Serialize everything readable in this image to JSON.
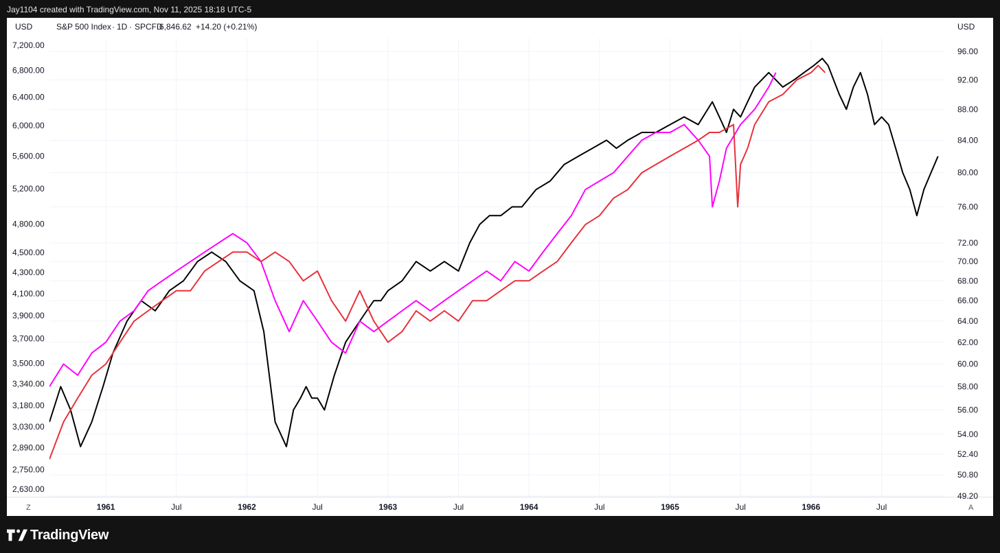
{
  "header": {
    "attribution": "Jay1104 created with TradingView.com, Nov 11, 2025 18:18 UTC-5"
  },
  "legend": {
    "left_currency": "USD",
    "symbol_name": "S&P 500 Index",
    "interval": "1D",
    "source": "SPCFD",
    "last_value": "6,846.62",
    "change": "+14.20 (+0.21%)",
    "right_currency": "USD"
  },
  "controls": {
    "zoom_label": "Z",
    "auto_label": "A"
  },
  "footer": {
    "brand": "TradingView"
  },
  "colors": {
    "black_series": "#000000",
    "magenta_series": "#ff00ff",
    "red_series": "#e8303a",
    "background": "#131313",
    "chart_background": "#ffffff",
    "grid": "#f0f3fa"
  },
  "chart_data": {
    "type": "line",
    "left_axis_scale": "log",
    "right_axis_scale": "log",
    "left_ticks": [
      "7,200.00",
      "6,800.00",
      "6,400.00",
      "6,000.00",
      "5,600.00",
      "5,200.00",
      "4,800.00",
      "4,500.00",
      "4,300.00",
      "4,100.00",
      "3,900.00",
      "3,700.00",
      "3,500.00",
      "3,340.00",
      "3,180.00",
      "3,030.00",
      "2,890.00",
      "2,750.00",
      "2,630.00"
    ],
    "left_tick_values": [
      7200,
      6800,
      6400,
      6000,
      5600,
      5200,
      4800,
      4500,
      4300,
      4100,
      3900,
      3700,
      3500,
      3340,
      3180,
      3030,
      2890,
      2750,
      2630
    ],
    "right_ticks": [
      "96.00",
      "92.00",
      "88.00",
      "84.00",
      "80.00",
      "76.00",
      "72.00",
      "70.00",
      "68.00",
      "66.00",
      "64.00",
      "62.00",
      "60.00",
      "58.00",
      "56.00",
      "54.00",
      "52.40",
      "50.80",
      "49.20"
    ],
    "right_tick_values": [
      96,
      92,
      88,
      84,
      80,
      76,
      72,
      70,
      68,
      66,
      64,
      62,
      60,
      58,
      56,
      54,
      52.4,
      50.8,
      49.2
    ],
    "x_ticks": [
      {
        "label": "1961",
        "x": 1961.0,
        "bold": true
      },
      {
        "label": "Jul",
        "x": 1961.5,
        "bold": false
      },
      {
        "label": "1962",
        "x": 1962.0,
        "bold": true
      },
      {
        "label": "Jul",
        "x": 1962.5,
        "bold": false
      },
      {
        "label": "1963",
        "x": 1963.0,
        "bold": true
      },
      {
        "label": "Jul",
        "x": 1963.5,
        "bold": false
      },
      {
        "label": "1964",
        "x": 1964.0,
        "bold": true
      },
      {
        "label": "Jul",
        "x": 1964.5,
        "bold": false
      },
      {
        "label": "1965",
        "x": 1965.0,
        "bold": true
      },
      {
        "label": "Jul",
        "x": 1965.5,
        "bold": false
      },
      {
        "label": "1966",
        "x": 1966.0,
        "bold": true
      },
      {
        "label": "Jul",
        "x": 1966.5,
        "bold": false
      }
    ],
    "x_range": [
      1960.6,
      1966.95
    ],
    "series": [
      {
        "color": "#000000",
        "axis": "right",
        "x": [
          1960.6,
          1960.68,
          1960.75,
          1960.82,
          1960.9,
          1960.98,
          1961.05,
          1961.15,
          1961.25,
          1961.35,
          1961.45,
          1961.55,
          1961.65,
          1961.75,
          1961.85,
          1961.95,
          1962.05,
          1962.12,
          1962.2,
          1962.28,
          1962.33,
          1962.38,
          1962.42,
          1962.46,
          1962.5,
          1962.55,
          1962.62,
          1962.7,
          1962.75,
          1962.8,
          1962.85,
          1962.9,
          1962.95,
          1963.0,
          1963.1,
          1963.2,
          1963.3,
          1963.4,
          1963.5,
          1963.58,
          1963.65,
          1963.72,
          1963.8,
          1963.88,
          1963.95,
          1964.05,
          1964.15,
          1964.25,
          1964.35,
          1964.45,
          1964.55,
          1964.62,
          1964.7,
          1964.8,
          1964.9,
          1965.0,
          1965.1,
          1965.2,
          1965.3,
          1965.35,
          1965.4,
          1965.45,
          1965.5,
          1965.55,
          1965.6,
          1965.7,
          1965.8,
          1965.88,
          1965.95,
          1966.02,
          1966.08,
          1966.12,
          1966.2,
          1966.25,
          1966.3,
          1966.35,
          1966.4,
          1966.45,
          1966.5,
          1966.55,
          1966.6,
          1966.65,
          1966.7,
          1966.75,
          1966.8,
          1966.85,
          1966.9
        ],
        "y": [
          55,
          58,
          56,
          53,
          55,
          58,
          61,
          64,
          66,
          65,
          67,
          68,
          70,
          71,
          70,
          68,
          67,
          63,
          55,
          53,
          56,
          57,
          58,
          57,
          57,
          56,
          59,
          62,
          63,
          64,
          65,
          66,
          66,
          67,
          68,
          70,
          69,
          70,
          69,
          72,
          74,
          75,
          75,
          76,
          76,
          78,
          79,
          81,
          82,
          83,
          84,
          83,
          84,
          85,
          85,
          86,
          87,
          86,
          89,
          87,
          85,
          88,
          87,
          89,
          91,
          93,
          91,
          92,
          93,
          94,
          95,
          94,
          90,
          88,
          91,
          93,
          90,
          86,
          87,
          86,
          83,
          80,
          78,
          75,
          78,
          80,
          82
        ]
      },
      {
        "color": "#ff00ff",
        "axis": "right",
        "x": [
          1960.6,
          1960.7,
          1960.8,
          1960.9,
          1961.0,
          1961.1,
          1961.2,
          1961.3,
          1961.4,
          1961.5,
          1961.6,
          1961.7,
          1961.8,
          1961.9,
          1962.0,
          1962.1,
          1962.2,
          1962.3,
          1962.4,
          1962.5,
          1962.6,
          1962.7,
          1962.8,
          1962.9,
          1963.0,
          1963.1,
          1963.2,
          1963.3,
          1963.4,
          1963.5,
          1963.6,
          1963.7,
          1963.8,
          1963.9,
          1964.0,
          1964.1,
          1964.2,
          1964.3,
          1964.4,
          1964.5,
          1964.6,
          1964.7,
          1964.8,
          1964.9,
          1965.0,
          1965.1,
          1965.2,
          1965.28,
          1965.3,
          1965.35,
          1965.4,
          1965.5,
          1965.6,
          1965.7,
          1965.75
        ],
        "y": [
          58,
          60,
          59,
          61,
          62,
          64,
          65,
          67,
          68,
          69,
          70,
          71,
          72,
          73,
          72,
          70,
          66,
          63,
          66,
          64,
          62,
          61,
          64,
          63,
          64,
          65,
          66,
          65,
          66,
          67,
          68,
          69,
          68,
          70,
          69,
          71,
          73,
          75,
          78,
          79,
          80,
          82,
          84,
          85,
          85,
          86,
          84,
          82,
          76,
          79,
          83,
          86,
          88,
          91,
          93
        ]
      },
      {
        "color": "#e8303a",
        "axis": "right",
        "x": [
          1960.6,
          1960.7,
          1960.8,
          1960.9,
          1961.0,
          1961.1,
          1961.2,
          1961.3,
          1961.4,
          1961.5,
          1961.6,
          1961.7,
          1961.8,
          1961.9,
          1962.0,
          1962.1,
          1962.2,
          1962.3,
          1962.4,
          1962.5,
          1962.6,
          1962.7,
          1962.8,
          1962.9,
          1963.0,
          1963.1,
          1963.2,
          1963.3,
          1963.4,
          1963.5,
          1963.6,
          1963.7,
          1963.8,
          1963.9,
          1964.0,
          1964.1,
          1964.2,
          1964.3,
          1964.4,
          1964.5,
          1964.6,
          1964.7,
          1964.8,
          1964.9,
          1965.0,
          1965.1,
          1965.2,
          1965.28,
          1965.35,
          1965.45,
          1965.48,
          1965.5,
          1965.55,
          1965.6,
          1965.7,
          1965.8,
          1965.9,
          1966.0,
          1966.05,
          1966.1
        ],
        "y": [
          52,
          55,
          57,
          59,
          60,
          62,
          64,
          65,
          66,
          67,
          67,
          69,
          70,
          71,
          71,
          70,
          71,
          70,
          68,
          69,
          66,
          64,
          67,
          64,
          62,
          63,
          65,
          64,
          65,
          64,
          66,
          66,
          67,
          68,
          68,
          69,
          70,
          72,
          74,
          75,
          77,
          78,
          80,
          81,
          82,
          83,
          84,
          85,
          85,
          86,
          76,
          81,
          83,
          86,
          89,
          90,
          92,
          93,
          94,
          93
        ]
      }
    ]
  }
}
